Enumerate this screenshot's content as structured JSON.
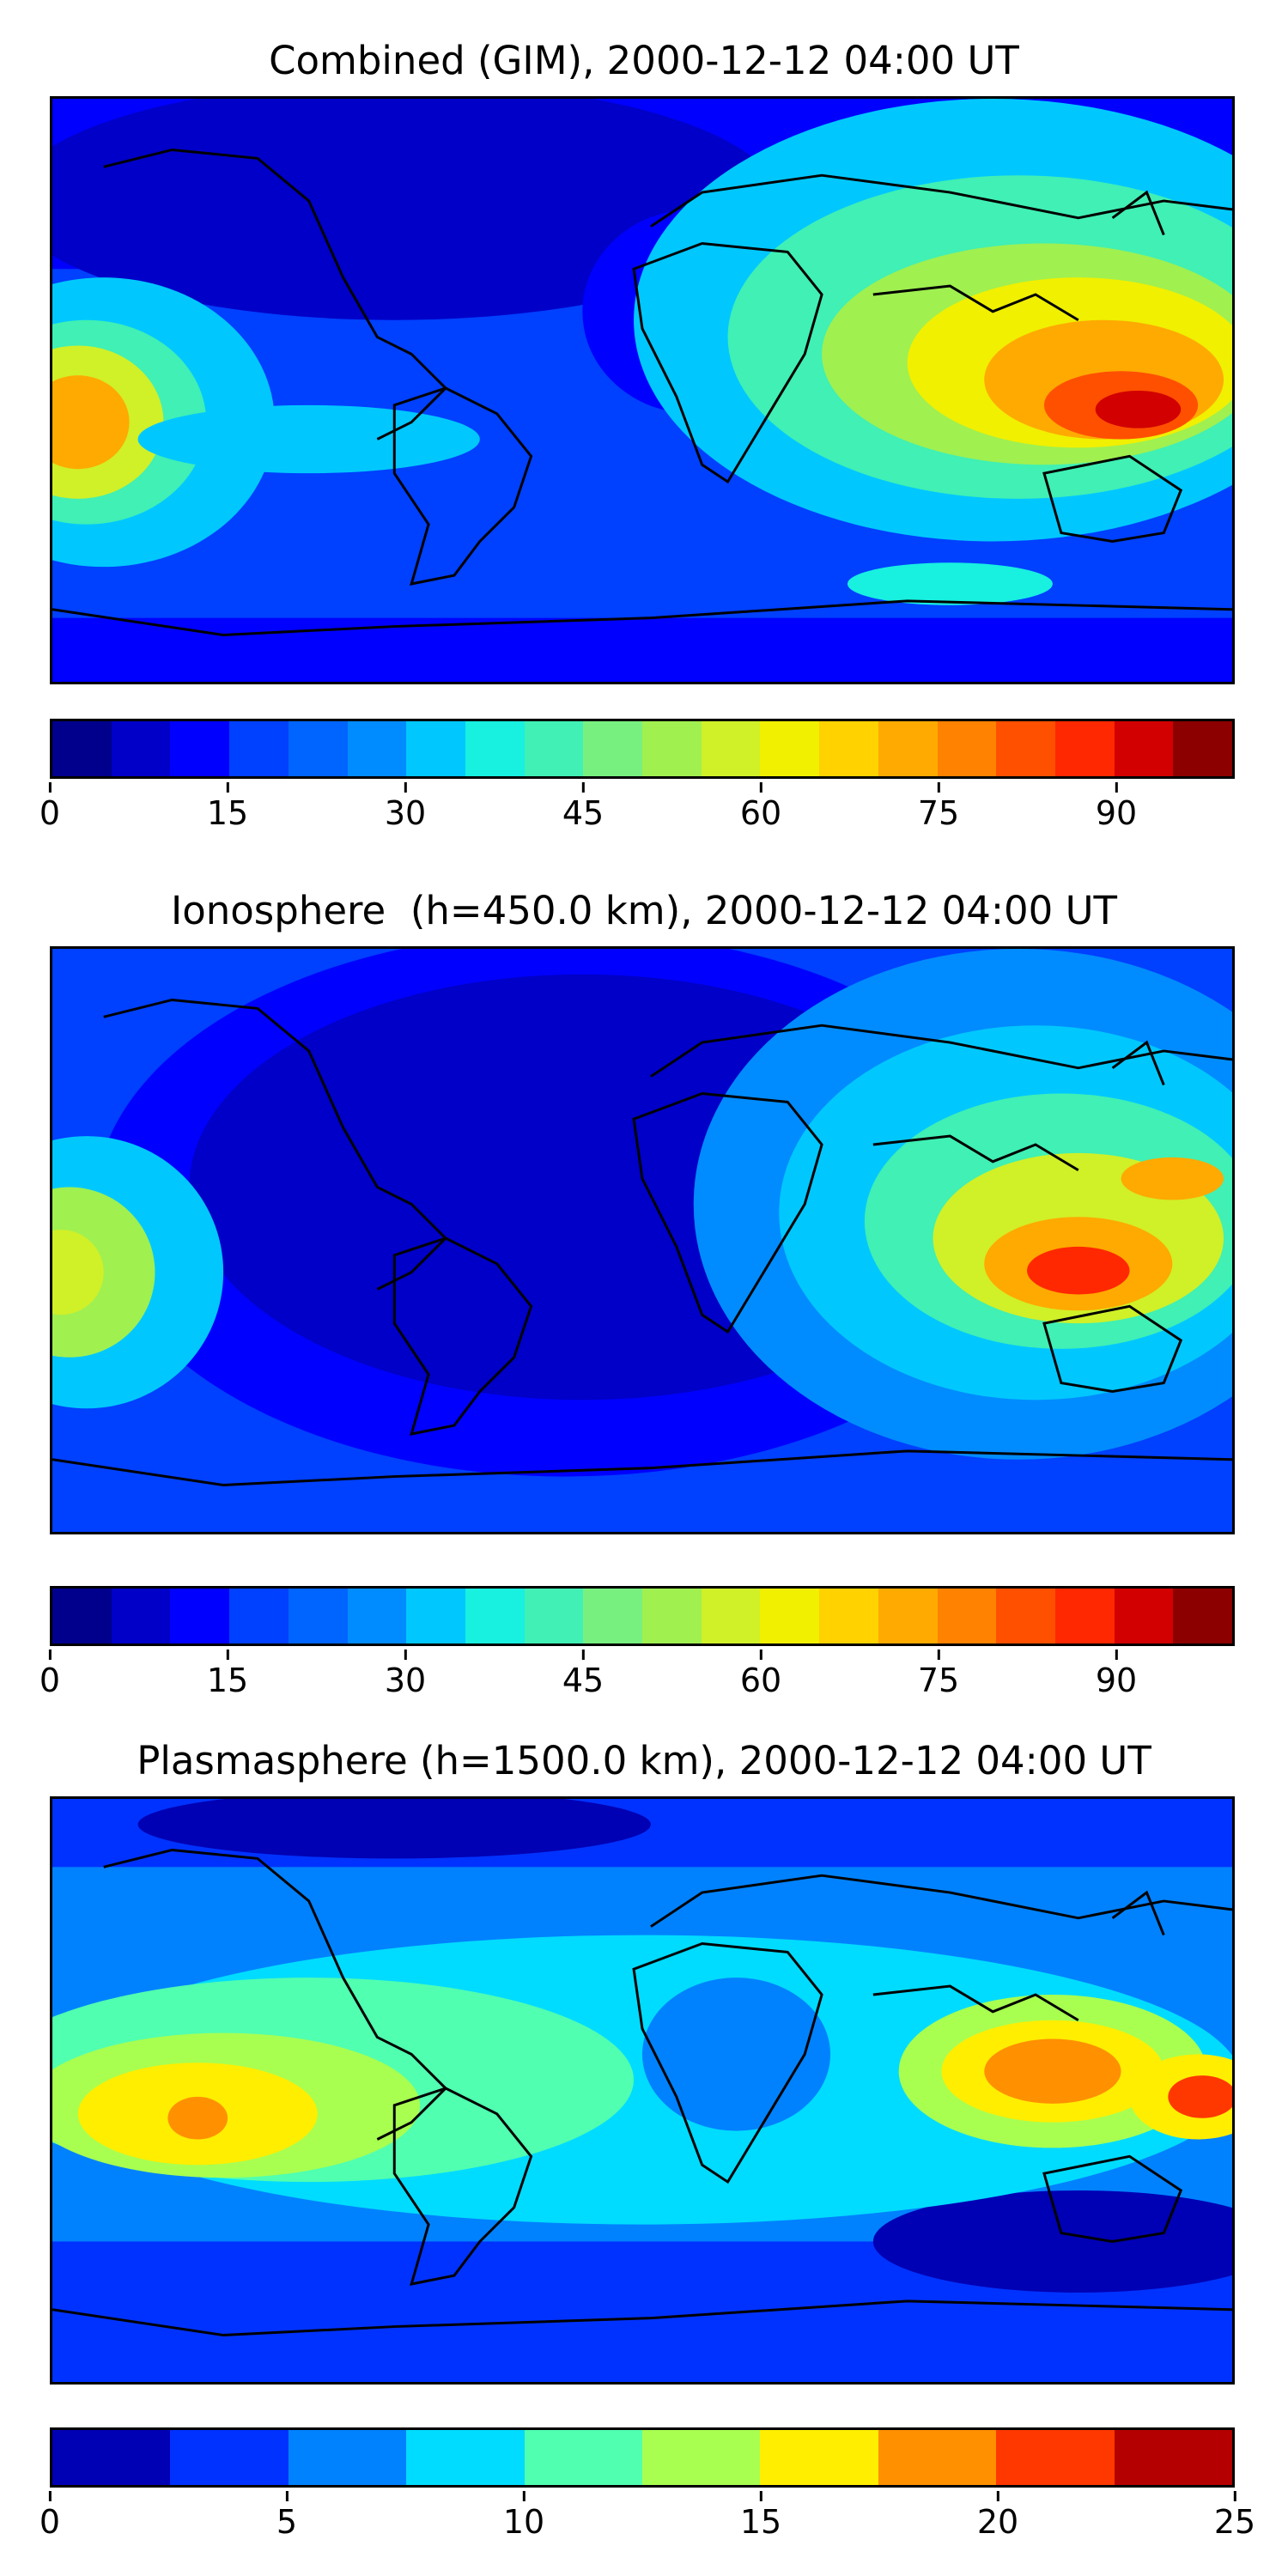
{
  "panels": [
    {
      "title": "Combined (GIM), 2000-12-12 04:00 UT",
      "colorbar": {
        "colors": [
          "#00008c",
          "#0000c8",
          "#0000ff",
          "#0040ff",
          "#0064ff",
          "#008cff",
          "#00c8ff",
          "#18f0e0",
          "#40f0b4",
          "#78f080",
          "#a0f050",
          "#d0f028",
          "#f0f000",
          "#ffd200",
          "#ffaa00",
          "#ff8200",
          "#ff5000",
          "#ff2800",
          "#d20000",
          "#8c0000"
        ],
        "ticks": [
          "0",
          "15",
          "30",
          "45",
          "60",
          "75",
          "90"
        ],
        "tick_values": [
          0,
          15,
          30,
          45,
          60,
          75,
          90
        ],
        "vmax": 100
      }
    },
    {
      "title": "Ionosphere  (h=450.0 km), 2000-12-12 04:00 UT",
      "colorbar": {
        "colors": [
          "#00008c",
          "#0000c8",
          "#0000ff",
          "#0040ff",
          "#0064ff",
          "#008cff",
          "#00c8ff",
          "#18f0e0",
          "#40f0b4",
          "#78f080",
          "#a0f050",
          "#d0f028",
          "#f0f000",
          "#ffd200",
          "#ffaa00",
          "#ff8200",
          "#ff5000",
          "#ff2800",
          "#d20000",
          "#8c0000"
        ],
        "ticks": [
          "0",
          "15",
          "30",
          "45",
          "60",
          "75",
          "90"
        ],
        "tick_values": [
          0,
          15,
          30,
          45,
          60,
          75,
          90
        ],
        "vmax": 100
      }
    },
    {
      "title": "Plasmasphere (h=1500.0 km), 2000-12-12 04:00 UT",
      "colorbar": {
        "colors": [
          "#0000b4",
          "#0032ff",
          "#0082ff",
          "#00dcff",
          "#50ffb0",
          "#a8ff50",
          "#ffee00",
          "#ff9000",
          "#ff3800",
          "#b40000"
        ],
        "ticks": [
          "0",
          "5",
          "10",
          "15",
          "20",
          "25"
        ],
        "tick_values": [
          0,
          5,
          10,
          15,
          20,
          25
        ],
        "vmax": 25
      }
    }
  ]
}
